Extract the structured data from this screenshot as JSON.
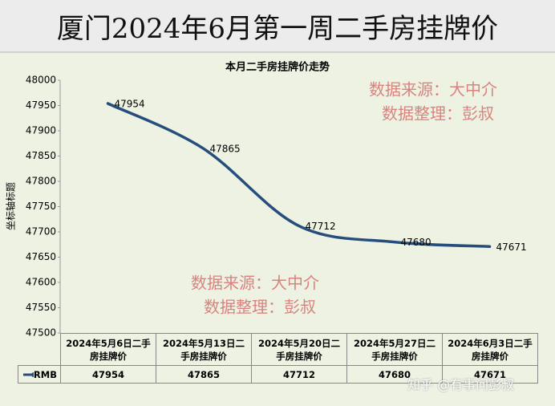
{
  "banner_title": "厦门2024年6月第一周二手房挂牌价",
  "chart_data": {
    "type": "line",
    "title": "本月二手房挂牌价走势",
    "y_label": "坐标轴标题",
    "categories": [
      "2024年5月6日二手房挂牌价",
      "2024年5月13日二手房挂牌价",
      "2024年5月20日二手房挂牌价",
      "2024年5月27日二手房挂牌价",
      "2024年6月3日二手房挂牌价"
    ],
    "series": [
      {
        "name": "RMB",
        "color": "#264d7c",
        "values": [
          47954,
          47865,
          47712,
          47680,
          47671
        ]
      }
    ],
    "ylim": [
      47500,
      48000
    ],
    "yticks": [
      47500,
      47550,
      47600,
      47650,
      47700,
      47750,
      47800,
      47850,
      47900,
      47950,
      48000
    ],
    "data_table": true,
    "annotations": [
      "数据来源：大中介",
      "数据整理：彭叔"
    ],
    "watermark": "知乎 @有事问彭叔"
  }
}
